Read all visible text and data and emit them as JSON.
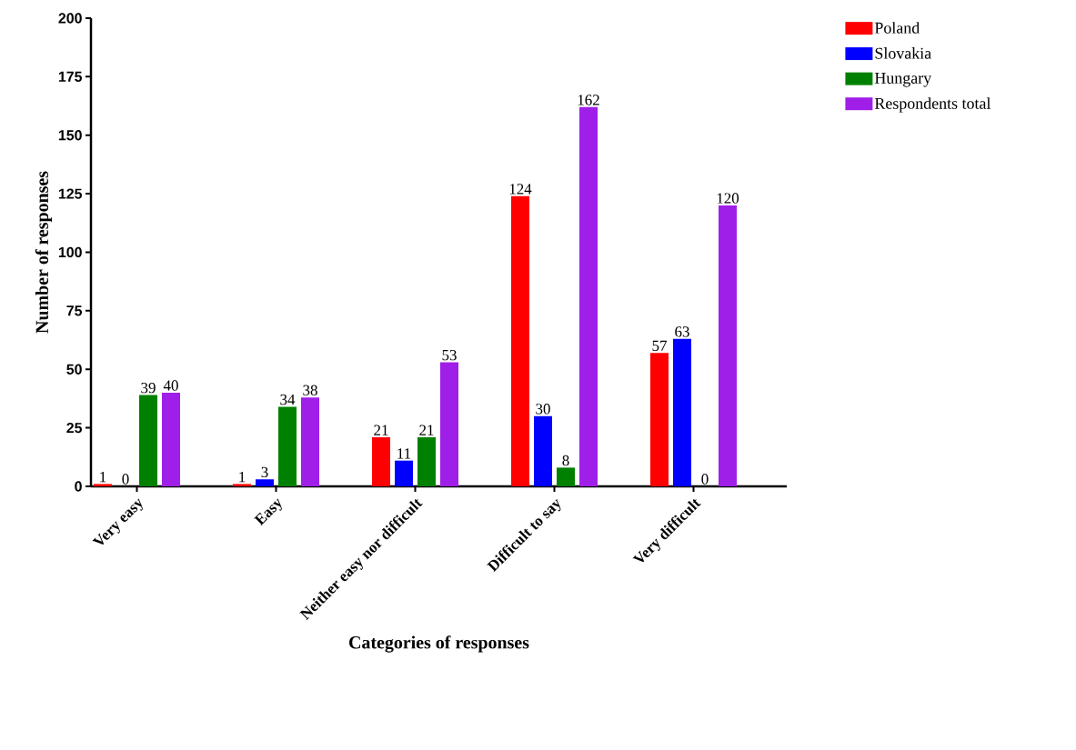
{
  "chart_data": {
    "type": "bar",
    "xlabel": "Categories of responses",
    "ylabel": "Number of responses",
    "categories": [
      "Very easy",
      "Easy",
      "Neither easy nor difficult",
      "Difficult to say",
      "Very difficult"
    ],
    "series": [
      {
        "name": "Poland",
        "color": "#ff0000",
        "values": [
          1,
          1,
          21,
          124,
          57
        ]
      },
      {
        "name": "Slovakia",
        "color": "#0000ff",
        "values": [
          0,
          3,
          11,
          30,
          63
        ]
      },
      {
        "name": "Hungary",
        "color": "#008000",
        "values": [
          39,
          34,
          21,
          8,
          0
        ]
      },
      {
        "name": "Respondents total",
        "color": "#a01fe8",
        "values": [
          40,
          38,
          53,
          162,
          120
        ]
      }
    ],
    "ylim": [
      0,
      200
    ],
    "yticks": [
      0,
      25,
      50,
      75,
      100,
      125,
      150,
      175,
      200
    ],
    "data_labels": true,
    "legend": "top right"
  }
}
